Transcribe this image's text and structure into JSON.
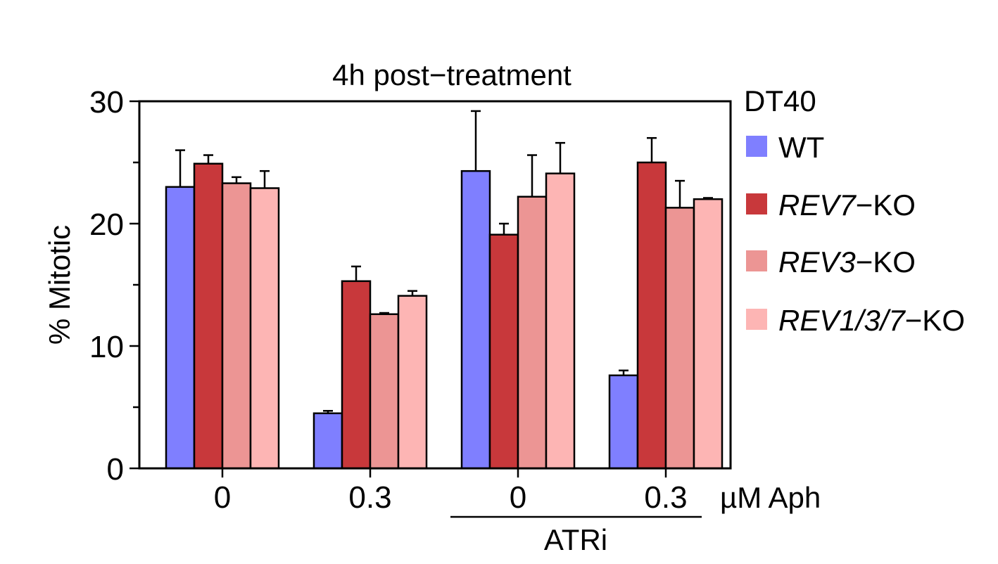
{
  "chart_data": {
    "type": "bar",
    "title": "4h post−treatment",
    "ylabel": "% Mitotic",
    "xlabel": "µM Aph",
    "ylim": [
      0,
      30
    ],
    "yticks": [
      0,
      10,
      20,
      30
    ],
    "yticks_minor": [
      5,
      15,
      25
    ],
    "categories": [
      "0",
      "0.3",
      "0",
      "0.3"
    ],
    "group_bracket": {
      "label": "ATRi",
      "span_categories": [
        2,
        3
      ]
    },
    "legend": {
      "title": "DT40",
      "position": "right",
      "items": [
        {
          "italic": "",
          "suffix": "WT",
          "color": "#7f7fff"
        },
        {
          "italic": "REV7",
          "suffix": "−KO",
          "color": "#c8383b"
        },
        {
          "italic": "REV3",
          "suffix": "−KO",
          "color": "#ec9594"
        },
        {
          "italic": "REV1/3/7",
          "suffix": "−KO",
          "color": "#fdb5b4"
        }
      ]
    },
    "series": [
      {
        "name": "WT",
        "color": "#7f7fff",
        "values": [
          23.0,
          4.5,
          24.3,
          7.6
        ],
        "errors": [
          3.0,
          0.2,
          4.9,
          0.4
        ]
      },
      {
        "name": "REV7−KO",
        "color": "#c8383b",
        "values": [
          24.9,
          15.3,
          19.1,
          25.0
        ],
        "errors": [
          0.7,
          1.2,
          0.9,
          2.0
        ]
      },
      {
        "name": "REV3−KO",
        "color": "#ec9594",
        "values": [
          23.3,
          12.6,
          22.2,
          21.3
        ],
        "errors": [
          0.5,
          0.1,
          3.4,
          2.2
        ]
      },
      {
        "name": "REV1/3/7−KO",
        "color": "#fdb5b4",
        "values": [
          22.9,
          14.1,
          24.1,
          22.0
        ],
        "errors": [
          1.4,
          0.4,
          2.5,
          0.1
        ]
      }
    ]
  }
}
